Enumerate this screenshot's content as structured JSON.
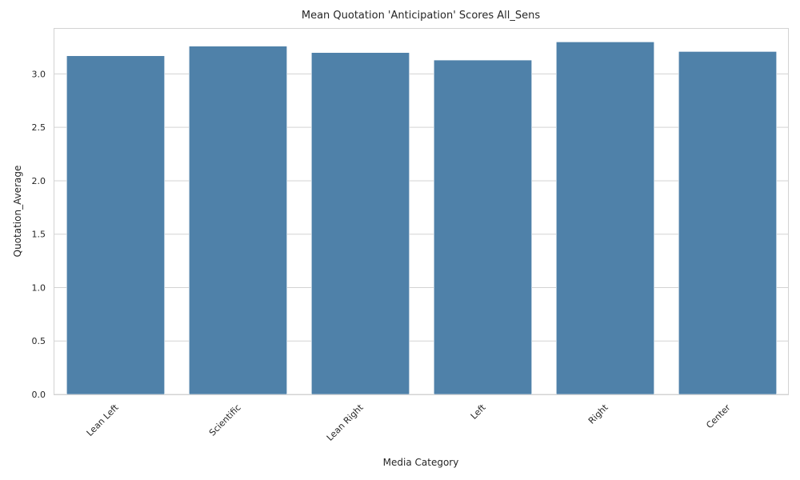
{
  "chart_data": {
    "type": "bar",
    "title": "Mean Quotation 'Anticipation' Scores All_Sens",
    "xlabel": "Media Category",
    "ylabel": "Quotation_Average",
    "categories": [
      "Lean Left",
      "Scientific",
      "Lean Right",
      "Left",
      "Right",
      "Center"
    ],
    "values": [
      3.17,
      3.26,
      3.2,
      3.13,
      3.3,
      3.21
    ],
    "ylim": [
      0,
      3.43
    ],
    "yticks": [
      "0.0",
      "0.5",
      "1.0",
      "1.5",
      "2.0",
      "2.5",
      "3.0"
    ],
    "bar_color": "#4f81a9",
    "grid": "horizontal",
    "x_tick_rotation": "45"
  }
}
